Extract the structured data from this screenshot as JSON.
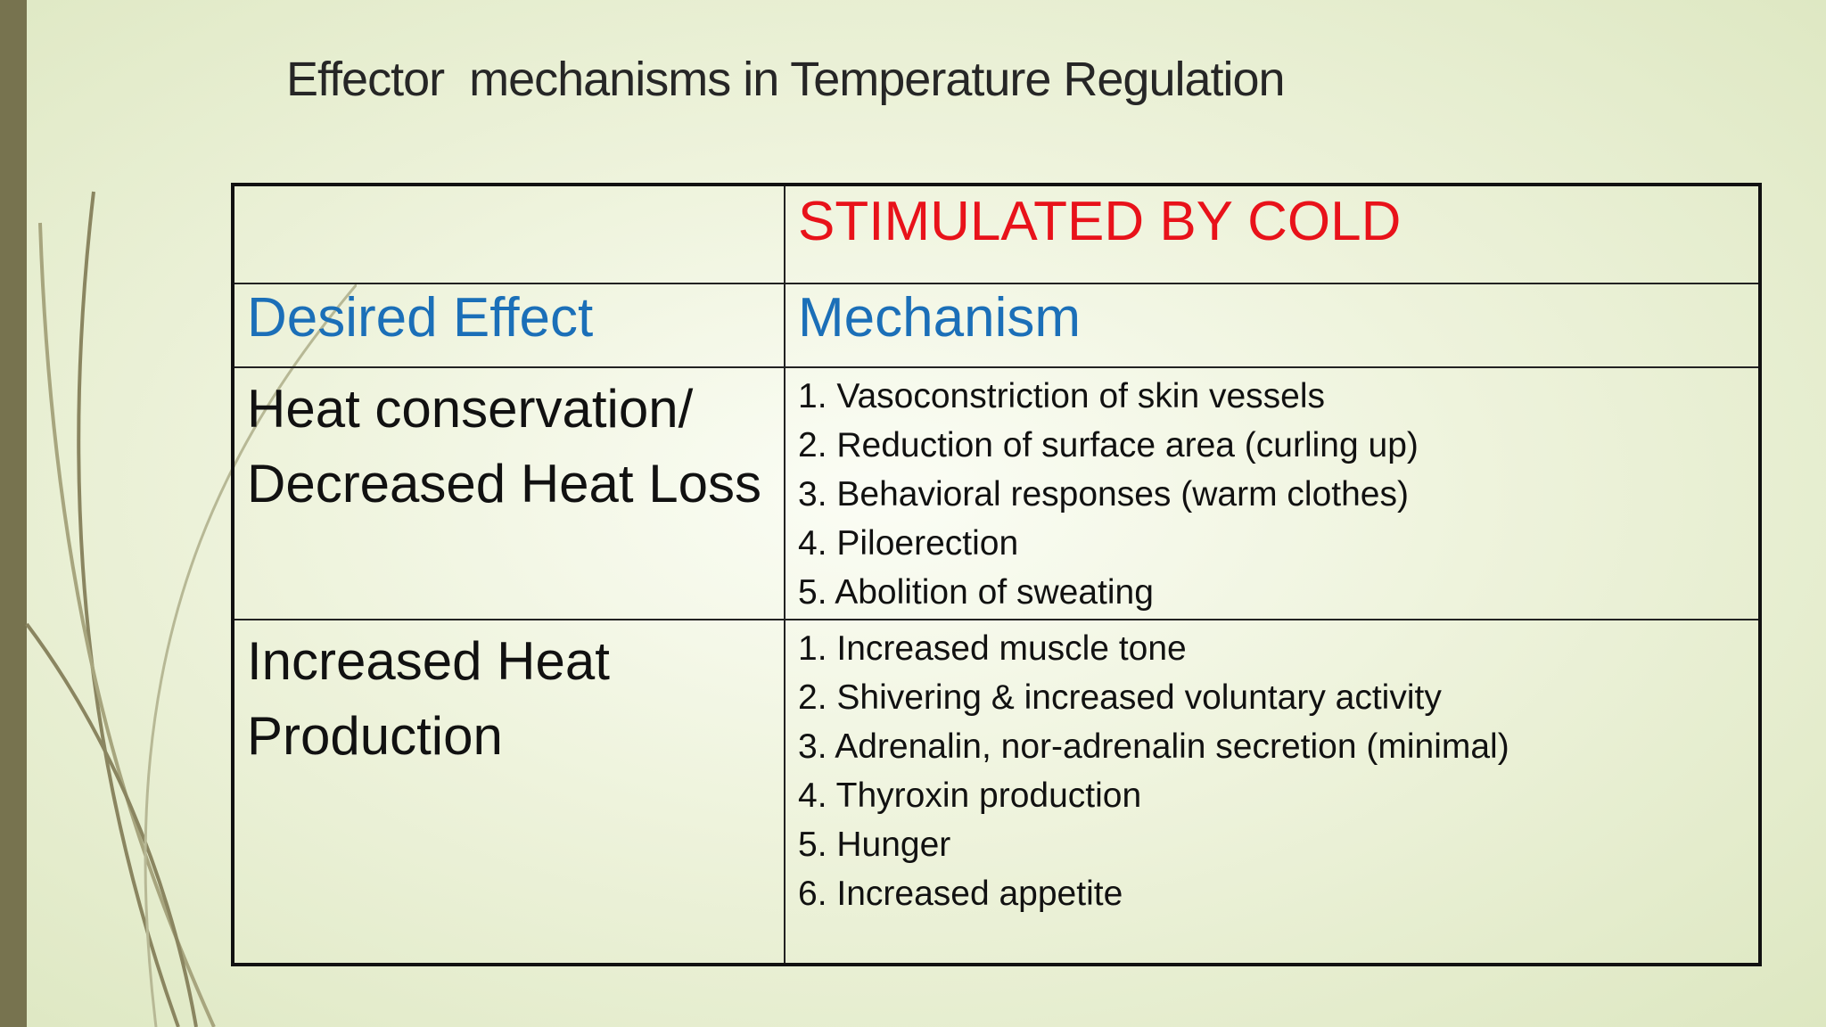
{
  "title": "Effector  mechanisms in Temperature Regulation",
  "table": {
    "column_header": "STIMULATED BY COLD",
    "labels": {
      "effect": "Desired Effect",
      "mechanism": "Mechanism"
    },
    "rows": [
      {
        "effect": [
          "Heat conservation/",
          "Decreased Heat Loss"
        ],
        "mechanisms": [
          "1. Vasoconstriction of skin vessels",
          "2. Reduction of surface area (curling up)",
          "3. Behavioral responses (warm clothes)",
          "4. Piloerection",
          "5. Abolition of sweating"
        ]
      },
      {
        "effect": [
          "Increased Heat",
          "Production"
        ],
        "mechanisms": [
          "1. Increased muscle tone",
          "2. Shivering & increased voluntary activity",
          "3. Adrenalin, nor-adrenalin secretion (minimal)",
          "4. Thyroxin production",
          "5. Hunger",
          "6. Increased appetite"
        ]
      }
    ]
  }
}
